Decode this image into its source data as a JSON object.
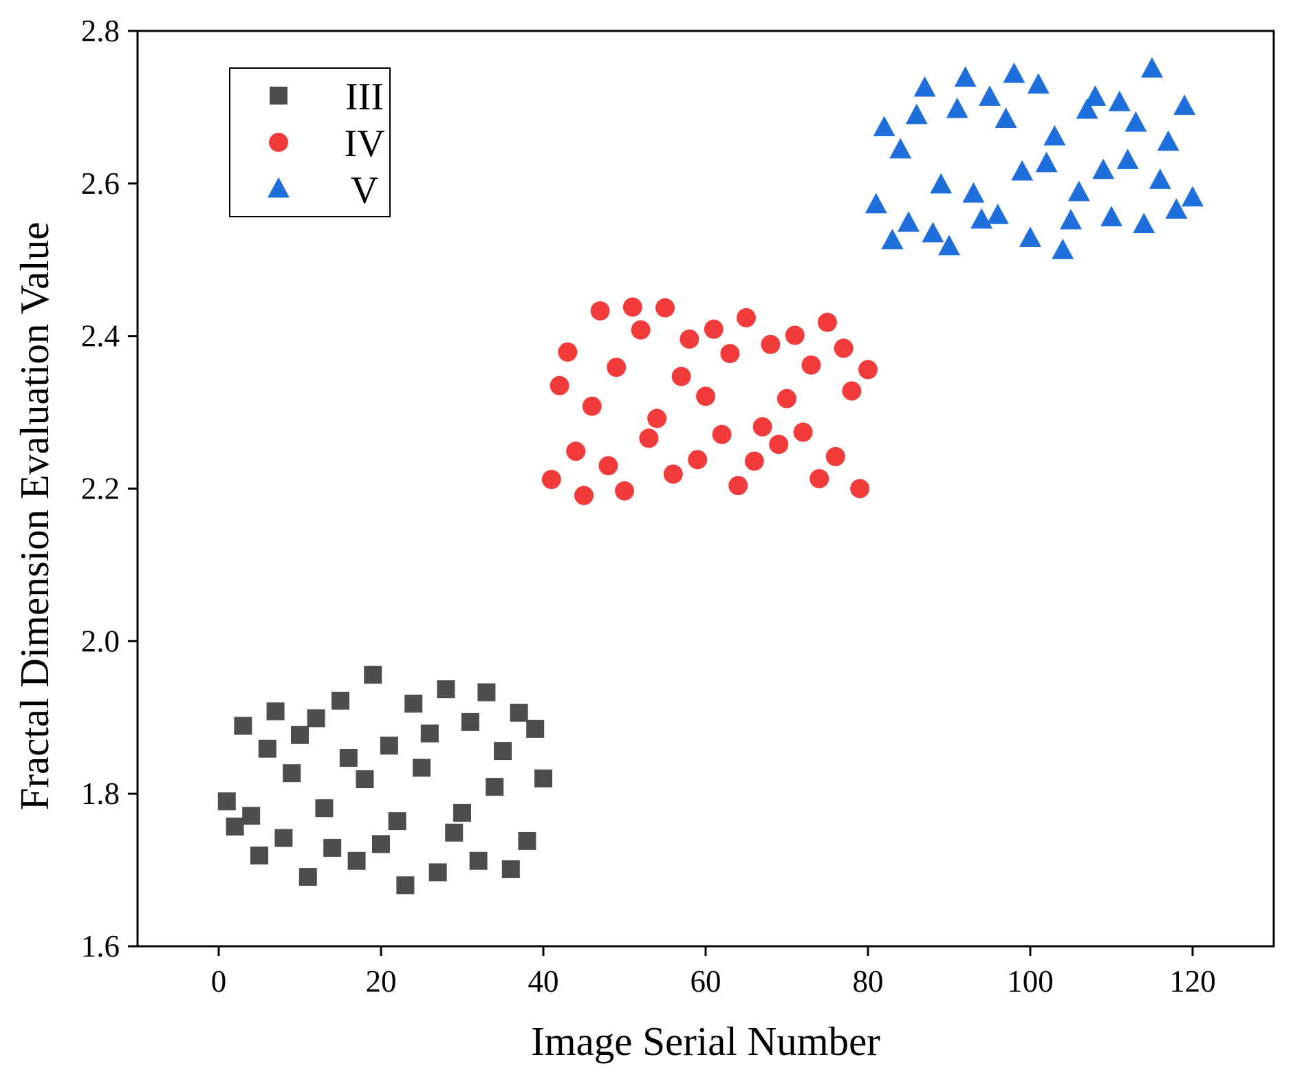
{
  "chart_data": {
    "type": "scatter",
    "xlabel": "Image Serial Number",
    "ylabel": "Fractal Dimension Evaluation Value",
    "xlim": [
      -10,
      130
    ],
    "ylim": [
      1.6,
      2.8
    ],
    "xticks": [
      "0",
      "20",
      "40",
      "60",
      "80",
      "100",
      "120"
    ],
    "yticks": [
      "1.6",
      "1.8",
      "2.0",
      "2.2",
      "2.4",
      "2.6",
      "2.8"
    ],
    "grid": false,
    "legend_position": "top-left",
    "series": [
      {
        "name": "III",
        "marker": "square",
        "color": "#4d4d4d",
        "points": [
          [
            1,
            1.79
          ],
          [
            2,
            1.757
          ],
          [
            3,
            1.889
          ],
          [
            4,
            1.771
          ],
          [
            5,
            1.719
          ],
          [
            6,
            1.859
          ],
          [
            7,
            1.908
          ],
          [
            8,
            1.742
          ],
          [
            9,
            1.827
          ],
          [
            10,
            1.877
          ],
          [
            11,
            1.691
          ],
          [
            12,
            1.899
          ],
          [
            13,
            1.781
          ],
          [
            14,
            1.729
          ],
          [
            15,
            1.922
          ],
          [
            16,
            1.847
          ],
          [
            17,
            1.712
          ],
          [
            18,
            1.819
          ],
          [
            19,
            1.956
          ],
          [
            20,
            1.734
          ],
          [
            21,
            1.863
          ],
          [
            22,
            1.764
          ],
          [
            23,
            1.68
          ],
          [
            24,
            1.918
          ],
          [
            25,
            1.834
          ],
          [
            26,
            1.879
          ],
          [
            27,
            1.697
          ],
          [
            28,
            1.937
          ],
          [
            29,
            1.749
          ],
          [
            30,
            1.775
          ],
          [
            31,
            1.894
          ],
          [
            32,
            1.712
          ],
          [
            33,
            1.933
          ],
          [
            34,
            1.809
          ],
          [
            35,
            1.856
          ],
          [
            36,
            1.701
          ],
          [
            37,
            1.906
          ],
          [
            38,
            1.738
          ],
          [
            39,
            1.885
          ],
          [
            40,
            1.82
          ]
        ]
      },
      {
        "name": "IV",
        "marker": "circle",
        "color": "#f23c3c",
        "points": [
          [
            41,
            2.212
          ],
          [
            42,
            2.335
          ],
          [
            43,
            2.379
          ],
          [
            44,
            2.249
          ],
          [
            45,
            2.191
          ],
          [
            46,
            2.308
          ],
          [
            47,
            2.433
          ],
          [
            48,
            2.23
          ],
          [
            49,
            2.359
          ],
          [
            50,
            2.197
          ],
          [
            51,
            2.438
          ],
          [
            52,
            2.408
          ],
          [
            53,
            2.266
          ],
          [
            54,
            2.292
          ],
          [
            55,
            2.437
          ],
          [
            56,
            2.219
          ],
          [
            57,
            2.347
          ],
          [
            58,
            2.396
          ],
          [
            59,
            2.238
          ],
          [
            60,
            2.321
          ],
          [
            61,
            2.409
          ],
          [
            62,
            2.271
          ],
          [
            63,
            2.377
          ],
          [
            64,
            2.204
          ],
          [
            65,
            2.424
          ],
          [
            66,
            2.236
          ],
          [
            67,
            2.281
          ],
          [
            68,
            2.389
          ],
          [
            69,
            2.258
          ],
          [
            70,
            2.318
          ],
          [
            71,
            2.401
          ],
          [
            72,
            2.274
          ],
          [
            73,
            2.362
          ],
          [
            74,
            2.213
          ],
          [
            75,
            2.418
          ],
          [
            76,
            2.242
          ],
          [
            77,
            2.384
          ],
          [
            78,
            2.328
          ],
          [
            79,
            2.2
          ],
          [
            80,
            2.356
          ]
        ]
      },
      {
        "name": "V",
        "marker": "triangle",
        "color": "#1e6edc",
        "points": [
          [
            81,
            2.572
          ],
          [
            82,
            2.673
          ],
          [
            83,
            2.525
          ],
          [
            84,
            2.644
          ],
          [
            85,
            2.548
          ],
          [
            86,
            2.689
          ],
          [
            87,
            2.725
          ],
          [
            88,
            2.534
          ],
          [
            89,
            2.598
          ],
          [
            90,
            2.517
          ],
          [
            91,
            2.697
          ],
          [
            92,
            2.738
          ],
          [
            93,
            2.586
          ],
          [
            94,
            2.552
          ],
          [
            95,
            2.713
          ],
          [
            96,
            2.558
          ],
          [
            97,
            2.684
          ],
          [
            98,
            2.743
          ],
          [
            99,
            2.615
          ],
          [
            100,
            2.528
          ],
          [
            101,
            2.729
          ],
          [
            102,
            2.626
          ],
          [
            103,
            2.661
          ],
          [
            104,
            2.512
          ],
          [
            105,
            2.551
          ],
          [
            106,
            2.588
          ],
          [
            107,
            2.696
          ],
          [
            108,
            2.713
          ],
          [
            109,
            2.617
          ],
          [
            110,
            2.555
          ],
          [
            111,
            2.706
          ],
          [
            112,
            2.63
          ],
          [
            113,
            2.679
          ],
          [
            114,
            2.546
          ],
          [
            115,
            2.75
          ],
          [
            116,
            2.604
          ],
          [
            117,
            2.654
          ],
          [
            118,
            2.565
          ],
          [
            119,
            2.701
          ],
          [
            120,
            2.581
          ]
        ]
      }
    ]
  }
}
